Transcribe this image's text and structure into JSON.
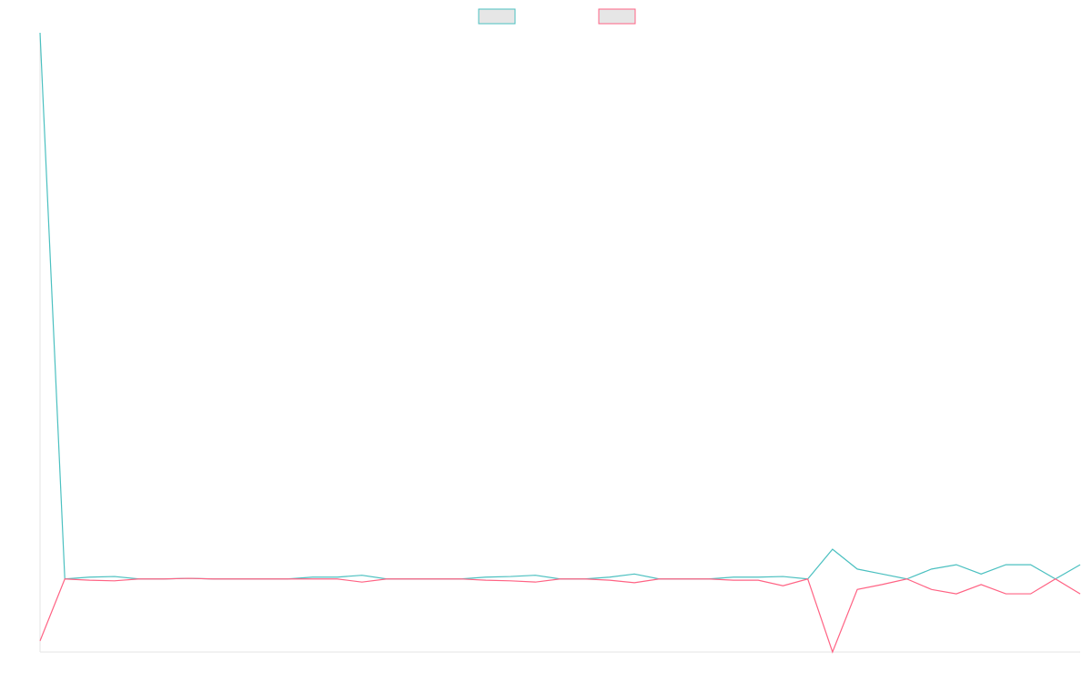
{
  "chart_data": {
    "type": "line",
    "legend": "top",
    "categories": [
      null,
      null,
      null,
      null,
      null,
      null,
      null,
      null,
      null,
      null,
      null,
      null,
      null,
      null,
      null,
      null,
      null,
      null,
      null,
      null,
      null,
      null,
      null,
      null,
      null,
      null,
      null,
      null,
      null,
      null,
      null,
      null,
      null,
      null,
      null,
      null,
      null,
      null,
      null,
      null,
      null,
      null,
      null
    ],
    "ylim": [
      0,
      100
    ],
    "series": [
      {
        "color": "#4bc0c0",
        "values": [
          100,
          11.8,
          12.1,
          12.2,
          11.8,
          11.8,
          11.9,
          11.8,
          11.8,
          11.8,
          11.8,
          12.1,
          12.1,
          12.4,
          11.8,
          11.8,
          11.8,
          11.8,
          12.1,
          12.2,
          12.4,
          11.8,
          11.8,
          12.1,
          12.6,
          11.8,
          11.8,
          11.8,
          12.1,
          12.1,
          12.2,
          11.8,
          16.6,
          13.4,
          12.6,
          11.8,
          13.4,
          14.1,
          12.6,
          14.1,
          14.1,
          11.8,
          14.1
        ]
      },
      {
        "color": "#ff6384",
        "values": [
          1.8,
          11.8,
          11.6,
          11.5,
          11.8,
          11.8,
          11.9,
          11.8,
          11.8,
          11.8,
          11.8,
          11.8,
          11.8,
          11.3,
          11.8,
          11.8,
          11.8,
          11.8,
          11.6,
          11.5,
          11.3,
          11.8,
          11.8,
          11.6,
          11.2,
          11.8,
          11.8,
          11.8,
          11.6,
          11.6,
          10.7,
          11.8,
          0,
          10.1,
          10.9,
          11.8,
          10.1,
          9.4,
          10.9,
          9.4,
          9.4,
          11.8,
          9.4
        ]
      }
    ]
  }
}
